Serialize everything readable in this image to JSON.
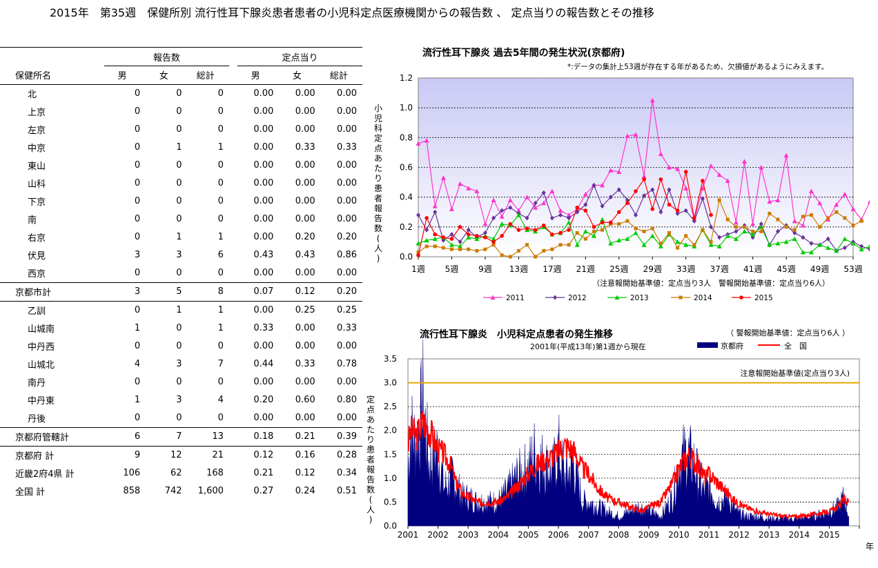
{
  "page_title": "2015年　第35週　保健所別 流行性耳下腺炎患者患者の小児科定点医療機関からの報告数 、 定点当りの報告数とその推移",
  "table": {
    "group_reports": "報告数",
    "group_per": "定点当り",
    "col_name": "保健所名",
    "col_m": "男",
    "col_f": "女",
    "col_t": "総計",
    "col_pm": "男",
    "col_pf": "女",
    "col_pt": "総計",
    "rows": [
      {
        "name": "北",
        "m": "0",
        "f": "0",
        "t": "0",
        "pm": "0.00",
        "pf": "0.00",
        "pt": "0.00"
      },
      {
        "name": "上京",
        "m": "0",
        "f": "0",
        "t": "0",
        "pm": "0.00",
        "pf": "0.00",
        "pt": "0.00"
      },
      {
        "name": "左京",
        "m": "0",
        "f": "0",
        "t": "0",
        "pm": "0.00",
        "pf": "0.00",
        "pt": "0.00"
      },
      {
        "name": "中京",
        "m": "0",
        "f": "1",
        "t": "1",
        "pm": "0.00",
        "pf": "0.33",
        "pt": "0.33"
      },
      {
        "name": "東山",
        "m": "0",
        "f": "0",
        "t": "0",
        "pm": "0.00",
        "pf": "0.00",
        "pt": "0.00"
      },
      {
        "name": "山科",
        "m": "0",
        "f": "0",
        "t": "0",
        "pm": "0.00",
        "pf": "0.00",
        "pt": "0.00"
      },
      {
        "name": "下京",
        "m": "0",
        "f": "0",
        "t": "0",
        "pm": "0.00",
        "pf": "0.00",
        "pt": "0.00"
      },
      {
        "name": "南",
        "m": "0",
        "f": "0",
        "t": "0",
        "pm": "0.00",
        "pf": "0.00",
        "pt": "0.00"
      },
      {
        "name": "右京",
        "m": "0",
        "f": "1",
        "t": "1",
        "pm": "0.00",
        "pf": "0.20",
        "pt": "0.20"
      },
      {
        "name": "伏見",
        "m": "3",
        "f": "3",
        "t": "6",
        "pm": "0.43",
        "pf": "0.43",
        "pt": "0.86"
      },
      {
        "name": "西京",
        "m": "0",
        "f": "0",
        "t": "0",
        "pm": "0.00",
        "pf": "0.00",
        "pt": "0.00"
      }
    ],
    "city_total": {
      "name": "京都市計",
      "m": "3",
      "f": "5",
      "t": "8",
      "pm": "0.07",
      "pf": "0.12",
      "pt": "0.20"
    },
    "rows2": [
      {
        "name": "乙訓",
        "m": "0",
        "f": "1",
        "t": "1",
        "pm": "0.00",
        "pf": "0.25",
        "pt": "0.25"
      },
      {
        "name": "山城南",
        "m": "1",
        "f": "0",
        "t": "1",
        "pm": "0.33",
        "pf": "0.00",
        "pt": "0.33"
      },
      {
        "name": "中丹西",
        "m": "0",
        "f": "0",
        "t": "0",
        "pm": "0.00",
        "pf": "0.00",
        "pt": "0.00"
      },
      {
        "name": "山城北",
        "m": "4",
        "f": "3",
        "t": "7",
        "pm": "0.44",
        "pf": "0.33",
        "pt": "0.78"
      },
      {
        "name": "南丹",
        "m": "0",
        "f": "0",
        "t": "0",
        "pm": "0.00",
        "pf": "0.00",
        "pt": "0.00"
      },
      {
        "name": "中丹東",
        "m": "1",
        "f": "3",
        "t": "4",
        "pm": "0.20",
        "pf": "0.60",
        "pt": "0.80"
      },
      {
        "name": "丹後",
        "m": "0",
        "f": "0",
        "t": "0",
        "pm": "0.00",
        "pf": "0.00",
        "pt": "0.00"
      }
    ],
    "pref_managed": {
      "name": "京都府管轄計",
      "m": "6",
      "f": "7",
      "t": "13",
      "pm": "0.18",
      "pf": "0.21",
      "pt": "0.39"
    },
    "pref_total": {
      "name": "京都府 計",
      "m": "9",
      "f": "12",
      "t": "21",
      "pm": "0.12",
      "pf": "0.16",
      "pt": "0.28"
    },
    "kinki_total": {
      "name": "近畿2府4県 計",
      "m": "106",
      "f": "62",
      "t": "168",
      "pm": "0.21",
      "pf": "0.12",
      "pt": "0.34"
    },
    "nation_total": {
      "name": "全国 計",
      "m": "858",
      "f": "742",
      "t": "1,600",
      "pm": "0.27",
      "pf": "0.24",
      "pt": "0.51"
    }
  },
  "chart1_text": {
    "title": "流行性耳下腺炎 過去5年間の発生状況(京都府)",
    "note": "*:データの集計上53週が存在する年があるため、欠損値があるようにみえます。",
    "ylabel": "小児科定点あたり患者報告数(人)",
    "threshold_note": "（注意報開始基準値：定点当り3人　警報開始基準値：定点当り6人）"
  },
  "chart2_text": {
    "title": "流行性耳下腺炎　小児科定点患者の発生推移",
    "subtitle": "2001年(平成13年)第1週から現在",
    "warning_note": "（ 警報開始基準値：定点当り6人 ）",
    "legend_kyoto": "京都府",
    "legend_nation": "全　国",
    "caution_label": "注意報開始基準値(定点当り3人)",
    "ylabel": "定点あたり患者報告数(人)",
    "xunit": "年"
  },
  "chart_data": [
    {
      "type": "line",
      "title": "流行性耳下腺炎 過去5年間の発生状況(京都府)",
      "ylabel": "小児科定点あたり患者報告数(人)",
      "ylim": [
        0,
        1.2
      ],
      "yticks": [
        "0.0",
        "0.2",
        "0.4",
        "0.6",
        "0.8",
        "1.0",
        "1.2"
      ],
      "xticks": [
        "1週",
        "5週",
        "9週",
        "13週",
        "17週",
        "21週",
        "25週",
        "29週",
        "33週",
        "37週",
        "41週",
        "45週",
        "49週",
        "53週"
      ],
      "x_weeks_first": 1,
      "grid": true,
      "legend_position": "bottom",
      "series": [
        {
          "name": "2011",
          "color": "#ff33cc",
          "marker": "triangle",
          "values": [
            0.76,
            0.78,
            0.34,
            0.53,
            0.32,
            0.49,
            0.46,
            0.44,
            0.22,
            0.38,
            0.27,
            0.38,
            0.31,
            0.4,
            0.33,
            0.36,
            0.44,
            0.31,
            0.28,
            0.32,
            0.42,
            0.48,
            0.48,
            0.58,
            0.57,
            0.81,
            0.82,
            0.54,
            1.05,
            0.69,
            0.6,
            0.59,
            0.46,
            0.25,
            0.46,
            0.61,
            0.55,
            0.51,
            0.23,
            0.64,
            0.22,
            0.6,
            0.37,
            0.38,
            0.68,
            0.24,
            0.21,
            0.44,
            0.36,
            0.25,
            0.35,
            0.42,
            0.32,
            0.25,
            0.37,
            0.35,
            0.27
          ]
        },
        {
          "name": "2012",
          "color": "#663399",
          "marker": "diamond",
          "values": [
            0.28,
            0.18,
            0.3,
            0.11,
            0.15,
            0.1,
            0.18,
            0.13,
            0.16,
            0.26,
            0.31,
            0.33,
            0.29,
            0.26,
            0.36,
            0.43,
            0.26,
            0.28,
            0.26,
            0.3,
            0.35,
            0.48,
            0.34,
            0.4,
            0.45,
            0.38,
            0.28,
            0.41,
            0.45,
            0.3,
            0.45,
            0.29,
            0.31,
            0.24,
            0.39,
            0.2,
            0.13,
            0.15,
            0.17,
            0.21,
            0.13,
            0.22,
            0.08,
            0.17,
            0.21,
            0.16,
            0.13,
            0.09,
            0.08,
            0.12,
            0.04,
            0.06,
            0.1,
            0.07,
            0.05
          ]
        },
        {
          "name": "2013",
          "color": "#00cc00",
          "marker": "triangle",
          "values": [
            0.09,
            0.11,
            0.12,
            0.13,
            0.08,
            0.07,
            0.13,
            0.12,
            0.14,
            0.12,
            0.22,
            0.21,
            0.28,
            0.18,
            0.17,
            0.2,
            0.15,
            0.16,
            0.23,
            0.08,
            0.17,
            0.14,
            0.25,
            0.09,
            0.11,
            0.12,
            0.16,
            0.08,
            0.14,
            0.07,
            0.15,
            0.1,
            0.08,
            0.07,
            0.18,
            0.08,
            0.07,
            0.14,
            0.12,
            0.17,
            0.15,
            0.2,
            0.08,
            0.09,
            0.1,
            0.12,
            0.03,
            0.03,
            0.08,
            0.06,
            0.04,
            0.12,
            0.09,
            0.05,
            0.07
          ]
        },
        {
          "name": "2014",
          "color": "#cc7a00",
          "marker": "square",
          "values": [
            0.03,
            0.07,
            0.07,
            0.06,
            0.05,
            0.05,
            0.05,
            0.04,
            0.05,
            0.08,
            0.01,
            0.0,
            0.04,
            0.08,
            0.0,
            0.04,
            0.05,
            0.08,
            0.08,
            0.16,
            0.12,
            0.17,
            0.18,
            0.22,
            0.22,
            0.24,
            0.19,
            0.17,
            0.19,
            0.09,
            0.16,
            0.06,
            0.14,
            0.08,
            0.18,
            0.1,
            0.38,
            0.25,
            0.2,
            0.2,
            0.17,
            0.17,
            0.29,
            0.25,
            0.2,
            0.18,
            0.27,
            0.28,
            0.2,
            0.26,
            0.3,
            0.26,
            0.21,
            0.24
          ]
        },
        {
          "name": "2015",
          "color": "#ff0000",
          "marker": "circle",
          "values": [
            0.01,
            0.26,
            0.15,
            0.13,
            0.12,
            0.2,
            0.15,
            0.14,
            0.13,
            0.1,
            0.14,
            0.22,
            0.18,
            0.19,
            0.18,
            0.21,
            0.15,
            0.16,
            0.18,
            0.33,
            0.31,
            0.2,
            0.23,
            0.23,
            0.3,
            0.36,
            0.44,
            0.52,
            0.32,
            0.52,
            0.35,
            0.31,
            0.57,
            0.26,
            0.51,
            0.28
          ]
        }
      ]
    },
    {
      "type": "area",
      "title": "流行性耳下腺炎　小児科定点患者の発生推移",
      "ylabel": "定点あたり患者報告数(人)",
      "ylim": [
        0,
        3.5
      ],
      "yticks": [
        "0.0",
        "0.5",
        "1.0",
        "1.5",
        "2.0",
        "2.5",
        "3.0",
        "3.5"
      ],
      "xticks": [
        "2001",
        "2002",
        "2003",
        "2004",
        "2005",
        "2006",
        "2007",
        "2008",
        "2009",
        "2010",
        "2011",
        "2012",
        "2013",
        "2014",
        "2015"
      ],
      "xlim": [
        2001,
        2016
      ],
      "caution_line": 3.0,
      "grid": true,
      "series": [
        {
          "name": "京都府",
          "color": "#000080",
          "kind": "area",
          "knots": [
            [
              2001.0,
              1.2
            ],
            [
              2001.1,
              2.0
            ],
            [
              2001.25,
              1.7
            ],
            [
              2001.4,
              2.1
            ],
            [
              2001.5,
              2.6
            ],
            [
              2001.7,
              1.3
            ],
            [
              2002.0,
              1.6
            ],
            [
              2002.2,
              0.8
            ],
            [
              2002.5,
              1.0
            ],
            [
              2002.8,
              0.6
            ],
            [
              2003.0,
              0.6
            ],
            [
              2003.3,
              0.5
            ],
            [
              2003.6,
              0.5
            ],
            [
              2004.0,
              0.5
            ],
            [
              2004.3,
              0.7
            ],
            [
              2004.6,
              1.0
            ],
            [
              2005.0,
              1.2
            ],
            [
              2005.2,
              1.5
            ],
            [
              2005.5,
              1.3
            ],
            [
              2005.8,
              1.1
            ],
            [
              2006.0,
              1.6
            ],
            [
              2006.2,
              1.0
            ],
            [
              2006.5,
              1.3
            ],
            [
              2006.8,
              0.5
            ],
            [
              2007.0,
              0.5
            ],
            [
              2007.3,
              0.4
            ],
            [
              2007.6,
              0.3
            ],
            [
              2008.0,
              0.2
            ],
            [
              2008.4,
              0.3
            ],
            [
              2008.7,
              0.4
            ],
            [
              2009.0,
              0.3
            ],
            [
              2009.4,
              0.2
            ],
            [
              2009.8,
              0.6
            ],
            [
              2010.0,
              1.3
            ],
            [
              2010.25,
              1.5
            ],
            [
              2010.5,
              1.3
            ],
            [
              2010.8,
              0.7
            ],
            [
              2011.0,
              0.8
            ],
            [
              2011.3,
              0.5
            ],
            [
              2011.6,
              0.6
            ],
            [
              2011.9,
              0.3
            ],
            [
              2012.2,
              0.2
            ],
            [
              2012.6,
              0.2
            ],
            [
              2013.0,
              0.15
            ],
            [
              2013.5,
              0.15
            ],
            [
              2014.0,
              0.15
            ],
            [
              2014.5,
              0.2
            ],
            [
              2015.0,
              0.3
            ],
            [
              2015.3,
              0.4
            ],
            [
              2015.5,
              0.6
            ],
            [
              2015.65,
              0.2
            ]
          ]
        },
        {
          "name": "全　国",
          "color": "#ff0000",
          "kind": "line",
          "knots": [
            [
              2001.0,
              1.7
            ],
            [
              2001.1,
              2.0
            ],
            [
              2001.3,
              1.9
            ],
            [
              2001.5,
              2.2
            ],
            [
              2001.8,
              1.9
            ],
            [
              2002.0,
              1.6
            ],
            [
              2002.2,
              1.5
            ],
            [
              2002.4,
              1.3
            ],
            [
              2002.6,
              0.9
            ],
            [
              2002.8,
              0.7
            ],
            [
              2003.0,
              0.6
            ],
            [
              2003.3,
              0.5
            ],
            [
              2003.6,
              0.5
            ],
            [
              2004.0,
              0.5
            ],
            [
              2004.3,
              0.6
            ],
            [
              2004.6,
              0.8
            ],
            [
              2005.0,
              1.1
            ],
            [
              2005.3,
              1.3
            ],
            [
              2005.6,
              1.4
            ],
            [
              2005.9,
              1.5
            ],
            [
              2006.2,
              1.7
            ],
            [
              2006.5,
              1.6
            ],
            [
              2006.8,
              1.2
            ],
            [
              2007.0,
              1.1
            ],
            [
              2007.3,
              0.8
            ],
            [
              2007.6,
              0.6
            ],
            [
              2008.0,
              0.5
            ],
            [
              2008.4,
              0.4
            ],
            [
              2008.8,
              0.3
            ],
            [
              2009.0,
              0.4
            ],
            [
              2009.4,
              0.5
            ],
            [
              2009.8,
              0.9
            ],
            [
              2010.0,
              1.2
            ],
            [
              2010.3,
              1.5
            ],
            [
              2010.6,
              1.3
            ],
            [
              2010.9,
              1.0
            ],
            [
              2011.0,
              1.1
            ],
            [
              2011.3,
              0.9
            ],
            [
              2011.6,
              0.7
            ],
            [
              2011.9,
              0.5
            ],
            [
              2012.2,
              0.4
            ],
            [
              2012.6,
              0.3
            ],
            [
              2013.0,
              0.25
            ],
            [
              2013.5,
              0.2
            ],
            [
              2014.0,
              0.2
            ],
            [
              2014.5,
              0.25
            ],
            [
              2015.0,
              0.3
            ],
            [
              2015.3,
              0.4
            ],
            [
              2015.5,
              0.55
            ],
            [
              2015.65,
              0.5
            ]
          ]
        }
      ]
    }
  ]
}
